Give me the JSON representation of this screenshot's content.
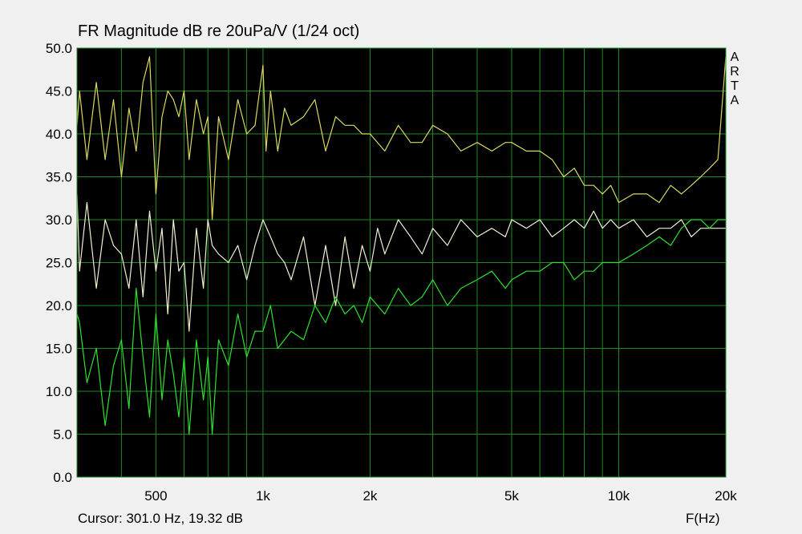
{
  "title": "FR Magnitude dB re 20uPa/V (1/24 oct)",
  "cursor_readout": "Cursor: 301.0 Hz, 19.32 dB",
  "brand": [
    "A",
    "R",
    "T",
    "A"
  ],
  "colors": {
    "background": "#f0f0f0",
    "plot_background": "#000000",
    "grid": "#1e8c1e",
    "upper_trace": "#d8d860",
    "middle_trace": "#f0f0d0",
    "lower_trace": "#2ee02e"
  },
  "chart_data": {
    "type": "line",
    "title": "FR Magnitude dB re 20uPa/V (1/24 oct)",
    "xlabel": "F(Hz)",
    "ylabel": "",
    "xscale": "log",
    "xlim": [
      300,
      20000
    ],
    "ylim": [
      0,
      50
    ],
    "grid": true,
    "x_ticks": [
      {
        "value": 500,
        "label": "500"
      },
      {
        "value": 1000,
        "label": "1k"
      },
      {
        "value": 2000,
        "label": "2k"
      },
      {
        "value": 5000,
        "label": "5k"
      },
      {
        "value": 10000,
        "label": "10k"
      },
      {
        "value": 20000,
        "label": "20k"
      }
    ],
    "y_ticks": [
      "0.0",
      "5.0",
      "10.0",
      "15.0",
      "20.0",
      "25.0",
      "30.0",
      "35.0",
      "40.0",
      "45.0",
      "50.0"
    ],
    "series": [
      {
        "color": "#d8d860",
        "x": [
          300,
          305,
          320,
          340,
          360,
          380,
          400,
          420,
          440,
          460,
          480,
          500,
          520,
          540,
          560,
          580,
          600,
          620,
          650,
          680,
          700,
          720,
          750,
          800,
          850,
          900,
          950,
          1000,
          1020,
          1050,
          1100,
          1150,
          1200,
          1300,
          1400,
          1500,
          1600,
          1700,
          1800,
          1900,
          2000,
          2200,
          2400,
          2600,
          2800,
          3000,
          3300,
          3600,
          4000,
          4400,
          4800,
          5000,
          5500,
          6000,
          6500,
          7000,
          7500,
          8000,
          8500,
          9000,
          9500,
          10000,
          11000,
          12000,
          13000,
          14000,
          15000,
          16000,
          17000,
          18000,
          19000,
          19500,
          20000
        ],
        "y": [
          41,
          45,
          37,
          46,
          37,
          44,
          35,
          43,
          38,
          46,
          49,
          33,
          42,
          45,
          44,
          42,
          45,
          37,
          44,
          40,
          42,
          30,
          42,
          37,
          44,
          40,
          41,
          48,
          38,
          45,
          38,
          43,
          41,
          42,
          44,
          38,
          42,
          41,
          41,
          40,
          40,
          38,
          41,
          39,
          39,
          41,
          40,
          38,
          39,
          38,
          39,
          39,
          38,
          38,
          37,
          35,
          36,
          34,
          34,
          33,
          34,
          32,
          33,
          33,
          32,
          34,
          33,
          34,
          35,
          36,
          37,
          43,
          49
        ]
      },
      {
        "color": "#f0f0d0",
        "x": [
          300,
          305,
          320,
          340,
          360,
          380,
          400,
          420,
          440,
          460,
          480,
          500,
          520,
          540,
          560,
          580,
          600,
          620,
          650,
          680,
          700,
          720,
          750,
          800,
          850,
          900,
          950,
          1000,
          1050,
          1100,
          1150,
          1200,
          1300,
          1400,
          1500,
          1600,
          1700,
          1800,
          1900,
          2000,
          2100,
          2200,
          2400,
          2600,
          2800,
          3000,
          3300,
          3600,
          4000,
          4400,
          4800,
          5000,
          5500,
          6000,
          6500,
          7000,
          7500,
          8000,
          8500,
          9000,
          9500,
          10000,
          11000,
          12000,
          13000,
          14000,
          15000,
          16000,
          17000,
          18000,
          19000,
          20000
        ],
        "y": [
          33,
          24,
          32,
          22,
          30,
          27,
          26,
          22,
          30,
          21,
          31,
          24,
          29,
          19,
          30,
          24,
          25,
          17,
          29,
          22,
          30,
          27,
          26,
          25,
          27,
          23,
          27,
          30,
          28,
          26,
          25,
          23,
          28,
          20,
          27,
          20,
          28,
          22,
          27,
          24,
          29,
          26,
          30,
          28,
          26,
          29,
          27,
          30,
          28,
          29,
          28,
          30,
          29,
          30,
          28,
          29,
          30,
          29,
          31,
          29,
          30,
          29,
          30,
          28,
          29,
          29,
          30,
          28,
          29,
          29,
          29,
          29
        ]
      },
      {
        "color": "#2ee02e",
        "x": [
          300,
          305,
          320,
          340,
          360,
          380,
          400,
          420,
          440,
          460,
          480,
          500,
          520,
          540,
          560,
          580,
          600,
          620,
          650,
          680,
          700,
          720,
          750,
          800,
          850,
          900,
          950,
          1000,
          1050,
          1100,
          1200,
          1300,
          1400,
          1500,
          1600,
          1700,
          1800,
          1900,
          2000,
          2200,
          2400,
          2600,
          2800,
          3000,
          3300,
          3600,
          4000,
          4400,
          4800,
          5000,
          5500,
          6000,
          6500,
          7000,
          7500,
          8000,
          8500,
          9000,
          9500,
          10000,
          11000,
          12000,
          13000,
          14000,
          15000,
          16000,
          17000,
          18000,
          19000,
          20000
        ],
        "y": [
          19,
          18,
          11,
          15,
          6,
          13,
          16,
          8,
          22,
          14,
          7,
          19,
          9,
          16,
          12,
          7,
          14,
          5,
          16,
          9,
          14,
          5,
          16,
          13,
          19,
          14,
          17,
          17,
          20,
          15,
          17,
          16,
          20,
          18,
          21,
          19,
          20,
          18,
          21,
          19,
          22,
          20,
          21,
          23,
          20,
          22,
          23,
          24,
          22,
          23,
          24,
          24,
          25,
          25,
          23,
          24,
          24,
          25,
          25,
          25,
          26,
          27,
          28,
          27,
          29,
          30,
          30,
          29,
          30,
          30
        ]
      }
    ]
  }
}
